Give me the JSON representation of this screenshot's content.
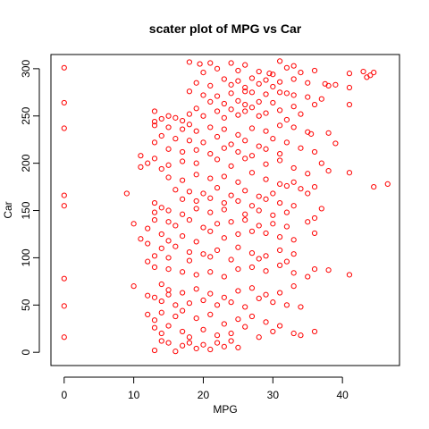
{
  "chart_data": {
    "type": "scatter",
    "title": "scater plot of MPG vs Car",
    "x_label": "MPG",
    "y_label": "Car",
    "color": "#ff0000",
    "xlim": [
      -1.9,
      48.2
    ],
    "ylim": [
      -14,
      315
    ],
    "xticks": [
      0,
      10,
      20,
      30,
      40
    ],
    "yticks": [
      0,
      50,
      100,
      150,
      200,
      250,
      300
    ],
    "x": [
      18,
      19.5,
      21,
      24,
      26,
      31,
      33,
      36,
      20,
      22,
      25,
      28,
      29.5,
      30,
      32,
      34,
      41,
      43,
      44,
      44.5,
      43.5,
      23,
      25,
      27,
      29,
      31,
      33,
      35,
      37.5,
      38,
      39,
      41,
      19,
      21,
      24,
      26,
      28,
      30,
      0,
      0,
      0,
      0,
      0,
      0,
      0,
      0,
      18,
      20,
      22,
      24,
      26,
      27,
      29,
      31,
      32,
      33,
      35,
      37,
      21,
      23,
      25,
      26,
      28,
      30,
      33,
      36,
      41,
      19,
      22,
      24,
      26,
      27,
      29,
      31,
      34,
      13,
      15,
      14,
      13,
      16,
      17,
      18,
      20,
      23,
      25,
      28,
      32,
      13,
      15,
      17,
      18,
      19,
      21,
      23,
      25,
      27,
      29,
      31,
      33,
      35,
      35.5,
      38,
      39,
      14,
      16,
      18,
      20,
      22,
      24,
      26,
      28,
      30,
      32,
      34,
      13,
      15,
      17,
      19,
      21,
      23,
      25,
      27,
      29,
      31,
      36,
      37,
      11,
      12,
      11,
      13,
      15,
      14,
      17,
      19,
      22,
      24,
      26,
      29,
      31,
      33,
      35,
      38,
      41,
      15,
      17,
      19,
      21,
      23,
      25,
      27,
      29,
      31,
      32,
      33,
      34,
      36,
      44.5,
      46.5,
      16,
      18,
      20,
      22,
      24,
      26,
      28,
      30,
      35,
      9,
      17,
      19,
      21,
      23,
      25,
      27,
      29,
      31,
      33,
      37,
      13,
      14,
      13,
      15,
      17,
      19,
      21,
      23,
      26,
      28,
      30,
      32,
      10,
      12,
      13,
      15,
      16,
      18,
      20,
      22,
      24,
      26,
      28,
      30,
      32,
      35,
      36,
      11,
      12,
      14,
      15,
      17,
      19,
      21,
      23,
      25,
      27,
      29,
      31,
      33,
      36,
      14,
      16,
      18,
      20,
      22,
      25,
      27,
      29,
      31,
      33,
      13,
      15,
      18,
      21,
      24,
      28,
      32,
      12,
      13,
      15,
      17,
      19,
      21,
      23,
      25,
      27,
      29,
      31,
      33,
      35,
      36,
      38,
      41,
      10,
      12,
      14,
      15,
      17,
      19,
      21,
      23,
      25,
      27,
      29,
      31,
      33,
      13,
      14,
      15,
      16,
      18,
      20,
      22,
      24,
      26,
      28,
      30,
      32,
      34,
      12,
      13,
      14,
      16,
      17,
      19,
      21,
      23,
      25,
      27,
      29,
      31,
      13,
      14,
      15,
      17,
      18,
      20,
      22,
      24,
      26,
      28,
      30,
      33,
      36,
      34,
      14,
      15,
      17,
      18,
      19,
      20,
      22,
      23,
      25,
      13,
      16,
      21,
      24
    ],
    "values": [
      307,
      305,
      306,
      306,
      304,
      308,
      303,
      298,
      296,
      300,
      298,
      297,
      295,
      294,
      301,
      296,
      295,
      297,
      293,
      296,
      291,
      289,
      287,
      290,
      288,
      286,
      289,
      285,
      284,
      282,
      283,
      280,
      285,
      282,
      283,
      280,
      284,
      281,
      301,
      264,
      237,
      166,
      155,
      78,
      49,
      16,
      276,
      272,
      271,
      274,
      276,
      275,
      273,
      275,
      274,
      272,
      270,
      268,
      265,
      263,
      266,
      262,
      265,
      264,
      260,
      262,
      262,
      258,
      255,
      257,
      255,
      259,
      253,
      256,
      252,
      255,
      250,
      247,
      244,
      248,
      245,
      252,
      250,
      248,
      251,
      250,
      246,
      240,
      238,
      236,
      241,
      234,
      238,
      236,
      230,
      237,
      234,
      240,
      238,
      233,
      231,
      232,
      221,
      229,
      226,
      224,
      222,
      228,
      220,
      224,
      218,
      226,
      222,
      216,
      222,
      215,
      212,
      214,
      210,
      216,
      212,
      208,
      215,
      210,
      212,
      200,
      208,
      200,
      196,
      205,
      198,
      194,
      202,
      200,
      204,
      197,
      205,
      199,
      203,
      195,
      189,
      192,
      190,
      185,
      182,
      188,
      184,
      186,
      180,
      190,
      183,
      178,
      176,
      180,
      173,
      175,
      175,
      178,
      172,
      170,
      168,
      174,
      166,
      171,
      165,
      168,
      168,
      168,
      162,
      160,
      163,
      158,
      160,
      155,
      162,
      158,
      155,
      152,
      158,
      153,
      148,
      150,
      146,
      152,
      148,
      151,
      146,
      150,
      145,
      148,
      136,
      131,
      140,
      138,
      134,
      140,
      132,
      136,
      138,
      140,
      134,
      136,
      133,
      138,
      142,
      120,
      115,
      125,
      118,
      123,
      117,
      128,
      121,
      125,
      128,
      126,
      122,
      119,
      126,
      110,
      112,
      106,
      104,
      108,
      111,
      105,
      102,
      108,
      104,
      102,
      100,
      97,
      101,
      98,
      99,
      96,
      96,
      90,
      88,
      85,
      82,
      85,
      80,
      88,
      90,
      86,
      92,
      84,
      80,
      88,
      87,
      82,
      70,
      60,
      72,
      66,
      63,
      67,
      62,
      58,
      65,
      68,
      61,
      63,
      70,
      58,
      54,
      61,
      50,
      52,
      55,
      50,
      53,
      48,
      57,
      53,
      50,
      48,
      40,
      34,
      42,
      38,
      44,
      36,
      40,
      30,
      35,
      38,
      32,
      28,
      26,
      20,
      28,
      22,
      16,
      24,
      18,
      20,
      27,
      16,
      22,
      20,
      22,
      18,
      12,
      10,
      7,
      10,
      4,
      8,
      10,
      6,
      5,
      2,
      1,
      3,
      12
    ]
  }
}
